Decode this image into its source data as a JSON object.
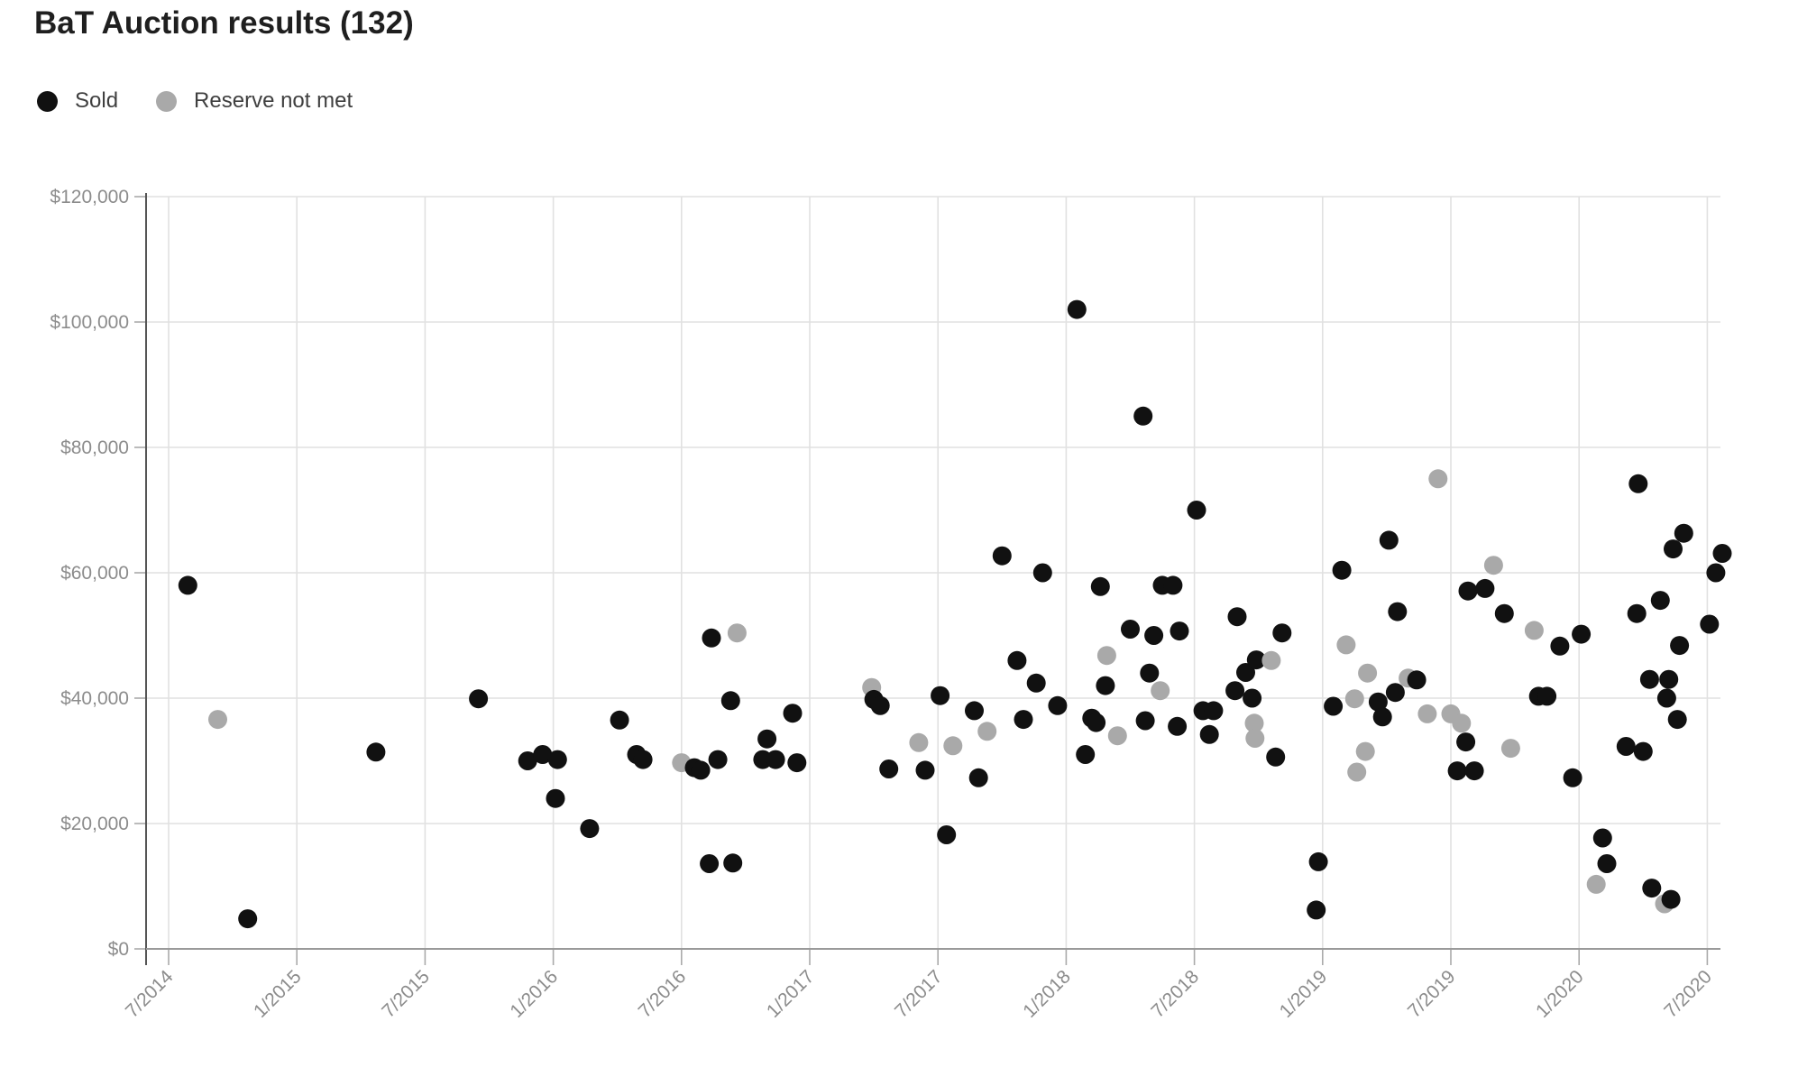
{
  "chart_data": {
    "type": "scatter",
    "title": "BaT Auction results (132)",
    "total_results": 132,
    "legend": [
      {
        "label": "Sold",
        "status": "sold",
        "color": "#111111"
      },
      {
        "label": "Reserve not met",
        "status": "reserve_not_met",
        "color": "#a9a9a9"
      }
    ],
    "status_colors": {
      "sold": "#111111",
      "reserve_not_met": "#a9a9a9"
    },
    "grid": true,
    "y_axis": {
      "range": [
        0,
        120000
      ],
      "ticks": [
        {
          "value": 0,
          "label": "$0"
        },
        {
          "value": 20000,
          "label": "$20,000"
        },
        {
          "value": 40000,
          "label": "$40,000"
        },
        {
          "value": 60000,
          "label": "$60,000"
        },
        {
          "value": 80000,
          "label": "$80,000"
        },
        {
          "value": 100000,
          "label": "$100,000"
        },
        {
          "value": 120000,
          "label": "$120,000"
        }
      ]
    },
    "x_axis": {
      "start": "2014-07",
      "end": "2020-07",
      "ticks": [
        {
          "months": 0,
          "label": "7/2014"
        },
        {
          "months": 6,
          "label": "1/2015"
        },
        {
          "months": 12,
          "label": "7/2015"
        },
        {
          "months": 18,
          "label": "1/2016"
        },
        {
          "months": 24,
          "label": "7/2016"
        },
        {
          "months": 30,
          "label": "1/2017"
        },
        {
          "months": 36,
          "label": "7/2017"
        },
        {
          "months": 42,
          "label": "1/2018"
        },
        {
          "months": 48,
          "label": "7/2018"
        },
        {
          "months": 54,
          "label": "1/2019"
        },
        {
          "months": 60,
          "label": "7/2019"
        },
        {
          "months": 66,
          "label": "1/2020"
        },
        {
          "months": 72,
          "label": "7/2020"
        }
      ]
    },
    "points": [
      {
        "date": "2014-07-28",
        "price": 58000,
        "status": "sold"
      },
      {
        "date": "2014-09-10",
        "price": 36600,
        "status": "reserve_not_met"
      },
      {
        "date": "2014-10-22",
        "price": 4800,
        "status": "sold"
      },
      {
        "date": "2015-04-22",
        "price": 31400,
        "status": "sold"
      },
      {
        "date": "2015-09-16",
        "price": 39900,
        "status": "sold"
      },
      {
        "date": "2015-11-25",
        "price": 30000,
        "status": "sold"
      },
      {
        "date": "2015-12-16",
        "price": 31000,
        "status": "sold"
      },
      {
        "date": "2016-01-04",
        "price": 24000,
        "status": "sold"
      },
      {
        "date": "2016-01-07",
        "price": 30200,
        "status": "sold"
      },
      {
        "date": "2016-02-22",
        "price": 19200,
        "status": "sold"
      },
      {
        "date": "2016-04-04",
        "price": 36500,
        "status": "sold"
      },
      {
        "date": "2016-04-28",
        "price": 31000,
        "status": "sold"
      },
      {
        "date": "2016-05-07",
        "price": 30200,
        "status": "sold"
      },
      {
        "date": "2016-07-01",
        "price": 29700,
        "status": "reserve_not_met"
      },
      {
        "date": "2016-07-19",
        "price": 28900,
        "status": "sold"
      },
      {
        "date": "2016-07-28",
        "price": 28500,
        "status": "sold"
      },
      {
        "date": "2016-08-10",
        "price": 13600,
        "status": "sold"
      },
      {
        "date": "2016-08-13",
        "price": 49600,
        "status": "sold"
      },
      {
        "date": "2016-08-22",
        "price": 30200,
        "status": "sold"
      },
      {
        "date": "2016-09-10",
        "price": 39600,
        "status": "sold"
      },
      {
        "date": "2016-09-13",
        "price": 13700,
        "status": "sold"
      },
      {
        "date": "2016-09-19",
        "price": 50400,
        "status": "reserve_not_met"
      },
      {
        "date": "2016-10-25",
        "price": 30200,
        "status": "sold"
      },
      {
        "date": "2016-11-01",
        "price": 33500,
        "status": "sold"
      },
      {
        "date": "2016-11-13",
        "price": 30200,
        "status": "sold"
      },
      {
        "date": "2016-12-07",
        "price": 37600,
        "status": "sold"
      },
      {
        "date": "2016-12-13",
        "price": 29700,
        "status": "sold"
      },
      {
        "date": "2017-03-28",
        "price": 41700,
        "status": "reserve_not_met"
      },
      {
        "date": "2017-04-01",
        "price": 39800,
        "status": "sold"
      },
      {
        "date": "2017-04-10",
        "price": 38800,
        "status": "sold"
      },
      {
        "date": "2017-04-22",
        "price": 28700,
        "status": "sold"
      },
      {
        "date": "2017-06-04",
        "price": 32900,
        "status": "reserve_not_met"
      },
      {
        "date": "2017-06-13",
        "price": 28500,
        "status": "sold"
      },
      {
        "date": "2017-07-04",
        "price": 40400,
        "status": "sold"
      },
      {
        "date": "2017-07-13",
        "price": 18200,
        "status": "sold"
      },
      {
        "date": "2017-07-22",
        "price": 32400,
        "status": "reserve_not_met"
      },
      {
        "date": "2017-08-22",
        "price": 38000,
        "status": "sold"
      },
      {
        "date": "2017-08-28",
        "price": 27300,
        "status": "sold"
      },
      {
        "date": "2017-09-10",
        "price": 34700,
        "status": "reserve_not_met"
      },
      {
        "date": "2017-10-01",
        "price": 62700,
        "status": "sold"
      },
      {
        "date": "2017-10-22",
        "price": 46000,
        "status": "sold"
      },
      {
        "date": "2017-11-01",
        "price": 36600,
        "status": "sold"
      },
      {
        "date": "2017-11-19",
        "price": 42400,
        "status": "sold"
      },
      {
        "date": "2017-11-28",
        "price": 60000,
        "status": "sold"
      },
      {
        "date": "2017-12-19",
        "price": 38800,
        "status": "sold"
      },
      {
        "date": "2018-01-16",
        "price": 102000,
        "status": "sold"
      },
      {
        "date": "2018-01-28",
        "price": 31000,
        "status": "sold"
      },
      {
        "date": "2018-02-07",
        "price": 36800,
        "status": "sold"
      },
      {
        "date": "2018-02-13",
        "price": 36100,
        "status": "sold"
      },
      {
        "date": "2018-02-19",
        "price": 57800,
        "status": "sold"
      },
      {
        "date": "2018-02-26",
        "price": 42000,
        "status": "sold"
      },
      {
        "date": "2018-02-28",
        "price": 46800,
        "status": "reserve_not_met"
      },
      {
        "date": "2018-03-13",
        "price": 34000,
        "status": "reserve_not_met"
      },
      {
        "date": "2018-04-01",
        "price": 51000,
        "status": "sold"
      },
      {
        "date": "2018-04-19",
        "price": 85000,
        "status": "sold"
      },
      {
        "date": "2018-04-22",
        "price": 36400,
        "status": "sold"
      },
      {
        "date": "2018-04-28",
        "price": 44000,
        "status": "sold"
      },
      {
        "date": "2018-05-04",
        "price": 50000,
        "status": "sold"
      },
      {
        "date": "2018-05-13",
        "price": 41200,
        "status": "reserve_not_met"
      },
      {
        "date": "2018-05-16",
        "price": 58000,
        "status": "sold"
      },
      {
        "date": "2018-06-01",
        "price": 58000,
        "status": "sold"
      },
      {
        "date": "2018-06-07",
        "price": 35500,
        "status": "sold"
      },
      {
        "date": "2018-06-10",
        "price": 50700,
        "status": "sold"
      },
      {
        "date": "2018-07-04",
        "price": 70000,
        "status": "sold"
      },
      {
        "date": "2018-07-13",
        "price": 38000,
        "status": "sold"
      },
      {
        "date": "2018-07-22",
        "price": 34200,
        "status": "sold"
      },
      {
        "date": "2018-07-28",
        "price": 38000,
        "status": "sold"
      },
      {
        "date": "2018-08-28",
        "price": 41200,
        "status": "sold"
      },
      {
        "date": "2018-09-01",
        "price": 53000,
        "status": "sold"
      },
      {
        "date": "2018-09-13",
        "price": 44100,
        "status": "sold"
      },
      {
        "date": "2018-09-22",
        "price": 40000,
        "status": "sold"
      },
      {
        "date": "2018-09-25",
        "price": 36000,
        "status": "reserve_not_met"
      },
      {
        "date": "2018-09-26",
        "price": 33600,
        "status": "reserve_not_met"
      },
      {
        "date": "2018-09-28",
        "price": 46100,
        "status": "sold"
      },
      {
        "date": "2018-10-19",
        "price": 46000,
        "status": "reserve_not_met"
      },
      {
        "date": "2018-10-25",
        "price": 30600,
        "status": "sold"
      },
      {
        "date": "2018-11-04",
        "price": 50400,
        "status": "sold"
      },
      {
        "date": "2018-12-22",
        "price": 6200,
        "status": "sold"
      },
      {
        "date": "2018-12-25",
        "price": 13900,
        "status": "sold"
      },
      {
        "date": "2019-01-16",
        "price": 38700,
        "status": "sold"
      },
      {
        "date": "2019-01-28",
        "price": 60400,
        "status": "sold"
      },
      {
        "date": "2019-02-04",
        "price": 48500,
        "status": "reserve_not_met"
      },
      {
        "date": "2019-02-16",
        "price": 39900,
        "status": "reserve_not_met"
      },
      {
        "date": "2019-02-19",
        "price": 28200,
        "status": "reserve_not_met"
      },
      {
        "date": "2019-03-01",
        "price": 31500,
        "status": "reserve_not_met"
      },
      {
        "date": "2019-03-04",
        "price": 44000,
        "status": "reserve_not_met"
      },
      {
        "date": "2019-03-19",
        "price": 39400,
        "status": "sold"
      },
      {
        "date": "2019-03-25",
        "price": 37000,
        "status": "sold"
      },
      {
        "date": "2019-04-04",
        "price": 65200,
        "status": "sold"
      },
      {
        "date": "2019-04-13",
        "price": 40900,
        "status": "sold"
      },
      {
        "date": "2019-04-16",
        "price": 53800,
        "status": "sold"
      },
      {
        "date": "2019-05-01",
        "price": 43200,
        "status": "reserve_not_met"
      },
      {
        "date": "2019-05-13",
        "price": 42900,
        "status": "sold"
      },
      {
        "date": "2019-05-28",
        "price": 37500,
        "status": "reserve_not_met"
      },
      {
        "date": "2019-06-13",
        "price": 75000,
        "status": "reserve_not_met"
      },
      {
        "date": "2019-07-01",
        "price": 37500,
        "status": "reserve_not_met"
      },
      {
        "date": "2019-07-10",
        "price": 28400,
        "status": "sold"
      },
      {
        "date": "2019-07-16",
        "price": 36000,
        "status": "reserve_not_met"
      },
      {
        "date": "2019-07-22",
        "price": 33000,
        "status": "sold"
      },
      {
        "date": "2019-07-25",
        "price": 57100,
        "status": "sold"
      },
      {
        "date": "2019-08-04",
        "price": 28400,
        "status": "sold"
      },
      {
        "date": "2019-08-19",
        "price": 57500,
        "status": "sold"
      },
      {
        "date": "2019-09-01",
        "price": 61200,
        "status": "reserve_not_met"
      },
      {
        "date": "2019-09-16",
        "price": 53500,
        "status": "sold"
      },
      {
        "date": "2019-09-25",
        "price": 32000,
        "status": "reserve_not_met"
      },
      {
        "date": "2019-10-28",
        "price": 50800,
        "status": "reserve_not_met"
      },
      {
        "date": "2019-11-04",
        "price": 40300,
        "status": "sold"
      },
      {
        "date": "2019-11-16",
        "price": 40300,
        "status": "sold"
      },
      {
        "date": "2019-12-04",
        "price": 48300,
        "status": "sold"
      },
      {
        "date": "2019-12-22",
        "price": 27300,
        "status": "sold"
      },
      {
        "date": "2020-01-04",
        "price": 50200,
        "status": "sold"
      },
      {
        "date": "2020-01-25",
        "price": 10300,
        "status": "reserve_not_met"
      },
      {
        "date": "2020-02-04",
        "price": 17700,
        "status": "sold"
      },
      {
        "date": "2020-02-10",
        "price": 13600,
        "status": "sold"
      },
      {
        "date": "2020-03-07",
        "price": 32300,
        "status": "sold"
      },
      {
        "date": "2020-03-22",
        "price": 53500,
        "status": "sold"
      },
      {
        "date": "2020-03-24",
        "price": 74200,
        "status": "sold"
      },
      {
        "date": "2020-04-01",
        "price": 31500,
        "status": "sold"
      },
      {
        "date": "2020-04-10",
        "price": 43000,
        "status": "sold"
      },
      {
        "date": "2020-04-13",
        "price": 9700,
        "status": "sold"
      },
      {
        "date": "2020-04-25",
        "price": 55600,
        "status": "sold"
      },
      {
        "date": "2020-05-01",
        "price": 7200,
        "status": "reserve_not_met"
      },
      {
        "date": "2020-05-04",
        "price": 40000,
        "status": "sold"
      },
      {
        "date": "2020-05-07",
        "price": 43000,
        "status": "sold"
      },
      {
        "date": "2020-05-10",
        "price": 7900,
        "status": "sold"
      },
      {
        "date": "2020-05-13",
        "price": 63800,
        "status": "sold"
      },
      {
        "date": "2020-05-19",
        "price": 36600,
        "status": "sold"
      },
      {
        "date": "2020-05-22",
        "price": 48400,
        "status": "sold"
      },
      {
        "date": "2020-05-28",
        "price": 66300,
        "status": "sold"
      },
      {
        "date": "2020-07-04",
        "price": 51800,
        "status": "sold"
      },
      {
        "date": "2020-07-13",
        "price": 60000,
        "status": "sold"
      },
      {
        "date": "2020-07-22",
        "price": 63100,
        "status": "sold"
      }
    ]
  }
}
